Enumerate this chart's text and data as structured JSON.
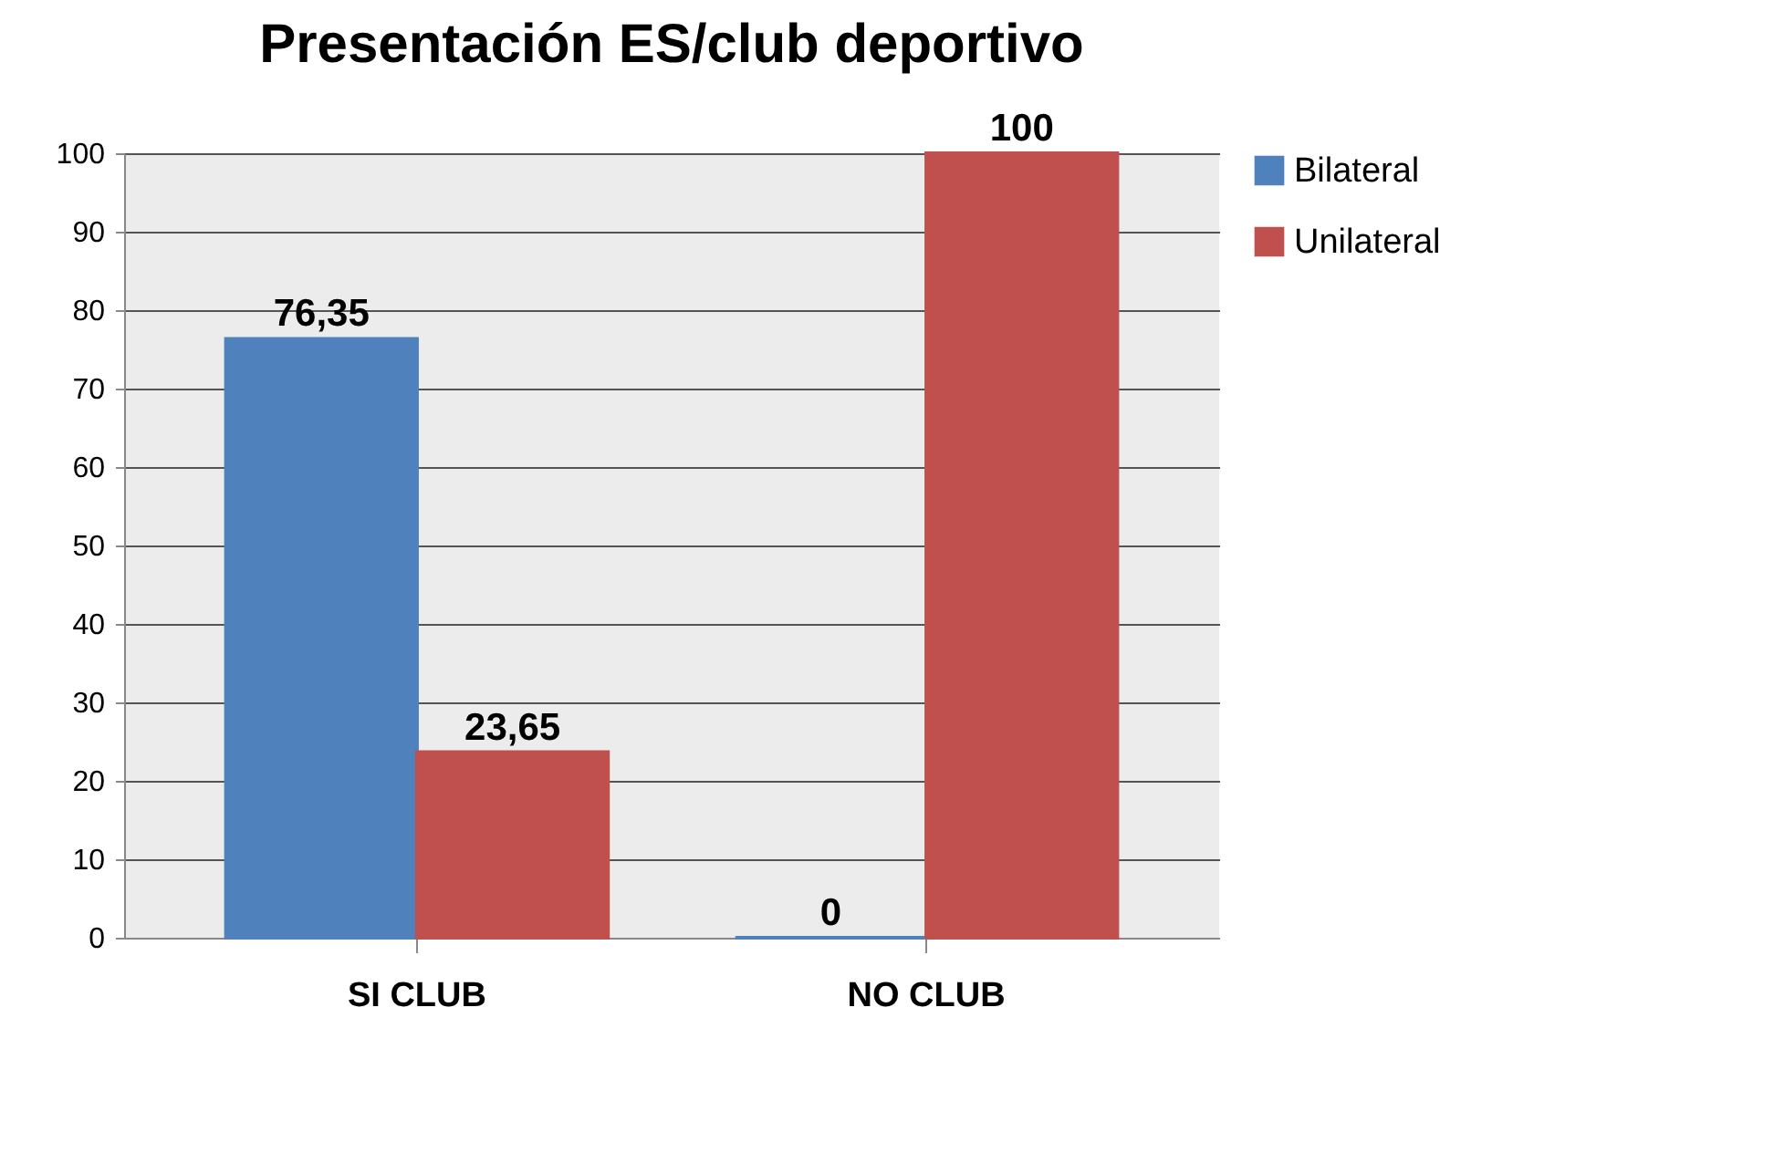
{
  "chart_data": {
    "type": "bar",
    "title": "Presentación ES/club deportivo",
    "categories": [
      "SI CLUB",
      "NO CLUB"
    ],
    "series": [
      {
        "name": "Bilateral",
        "color": "#4f81bd",
        "values": [
          76.35,
          0
        ],
        "value_labels": [
          "76,35",
          "0"
        ]
      },
      {
        "name": "Unilateral",
        "color": "#c0504d",
        "values": [
          23.65,
          100
        ],
        "value_labels": [
          "23,65",
          "100"
        ]
      }
    ],
    "ylim": [
      0,
      100
    ],
    "yticks": [
      0,
      10,
      20,
      30,
      40,
      50,
      60,
      70,
      80,
      90,
      100
    ],
    "grid": "y",
    "legend": "right"
  }
}
